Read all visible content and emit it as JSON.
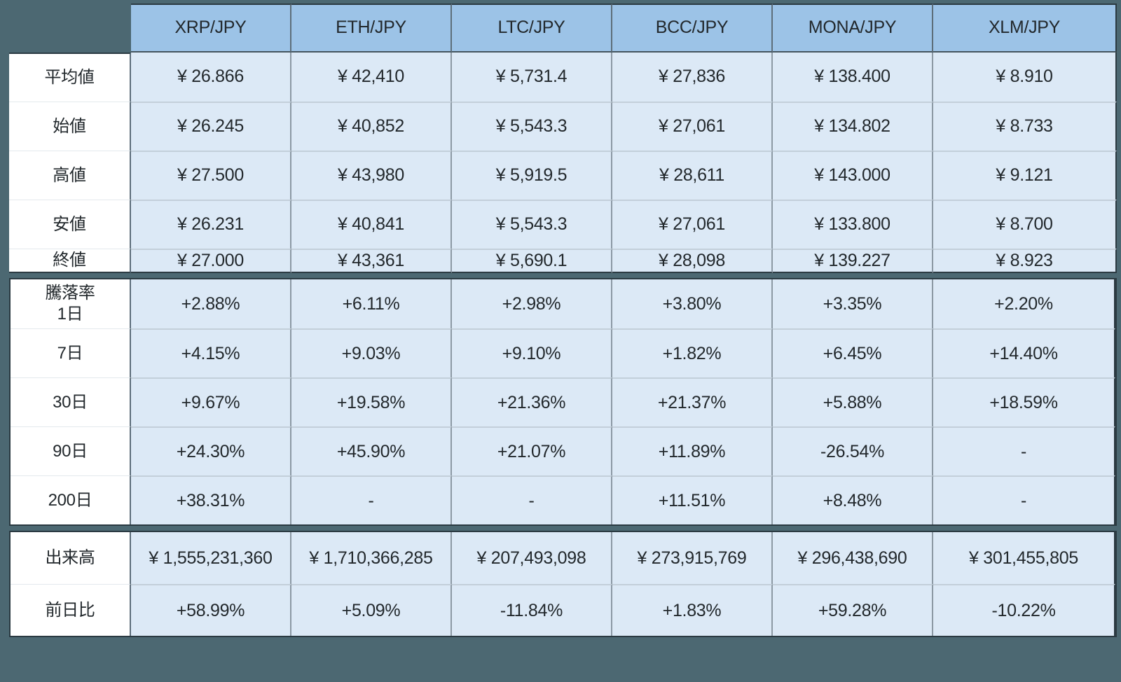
{
  "colors": {
    "background": "#4C6872",
    "header_fill": "#9CC3E7",
    "cell_fill": "#DCE9F6",
    "label_fill": "#FFFFFF",
    "section_border": "#2B3A42",
    "column_divider": "#8C99A4",
    "row_divider": "#C3CFDA",
    "label_divider": "#E4E9ED",
    "header_divider": "#5D6E7A",
    "header_bottom": "#44545E",
    "text": "#22282C"
  },
  "chart_data": {
    "type": "table",
    "columns": [
      "XRP/JPY",
      "ETH/JPY",
      "LTC/JPY",
      "BCC/JPY",
      "MONA/JPY",
      "XLM/JPY"
    ],
    "sections": [
      {
        "name": "prices",
        "rows": [
          {
            "key": "average",
            "label": "平均値",
            "values": [
              "¥ 26.866",
              "¥ 42,410",
              "¥ 5,731.4",
              "¥ 27,836",
              "¥ 138.400",
              "¥ 8.910"
            ]
          },
          {
            "key": "open",
            "label": "始値",
            "values": [
              "¥ 26.245",
              "¥ 40,852",
              "¥ 5,543.3",
              "¥ 27,061",
              "¥ 134.802",
              "¥ 8.733"
            ]
          },
          {
            "key": "high",
            "label": "高値",
            "values": [
              "¥ 27.500",
              "¥ 43,980",
              "¥ 5,919.5",
              "¥ 28,611",
              "¥ 143.000",
              "¥ 9.121"
            ]
          },
          {
            "key": "low",
            "label": "安値",
            "values": [
              "¥ 26.231",
              "¥ 40,841",
              "¥ 5,543.3",
              "¥ 27,061",
              "¥ 133.800",
              "¥ 8.700"
            ]
          },
          {
            "key": "close",
            "label": "終値",
            "values": [
              "¥ 27.000",
              "¥ 43,361",
              "¥ 5,690.1",
              "¥ 28,098",
              "¥ 139.227",
              "¥ 8.923"
            ]
          }
        ]
      },
      {
        "name": "change-rates",
        "rows": [
          {
            "key": "change-1d",
            "label": "騰落率\n1日",
            "values": [
              "+2.88%",
              "+6.11%",
              "+2.98%",
              "+3.80%",
              "+3.35%",
              "+2.20%"
            ]
          },
          {
            "key": "change-7d",
            "label": "7日",
            "values": [
              "+4.15%",
              "+9.03%",
              "+9.10%",
              "+1.82%",
              "+6.45%",
              "+14.40%"
            ]
          },
          {
            "key": "change-30d",
            "label": "30日",
            "values": [
              "+9.67%",
              "+19.58%",
              "+21.36%",
              "+21.37%",
              "+5.88%",
              "+18.59%"
            ]
          },
          {
            "key": "change-90d",
            "label": "90日",
            "values": [
              "+24.30%",
              "+45.90%",
              "+21.07%",
              "+11.89%",
              "-26.54%",
              "-"
            ]
          },
          {
            "key": "change-200d",
            "label": "200日",
            "values": [
              "+38.31%",
              "-",
              "-",
              "+11.51%",
              "+8.48%",
              "-"
            ]
          }
        ]
      },
      {
        "name": "volume",
        "rows": [
          {
            "key": "volume",
            "label": "出来高",
            "values": [
              "¥ 1,555,231,360",
              "¥ 1,710,366,285",
              "¥ 207,493,098",
              "¥ 273,915,769",
              "¥ 296,438,690",
              "¥ 301,455,805"
            ]
          },
          {
            "key": "change-prev-day",
            "label": "前日比",
            "values": [
              "+58.99%",
              "+5.09%",
              "-11.84%",
              "+1.83%",
              "+59.28%",
              "-10.22%"
            ]
          }
        ]
      }
    ]
  }
}
